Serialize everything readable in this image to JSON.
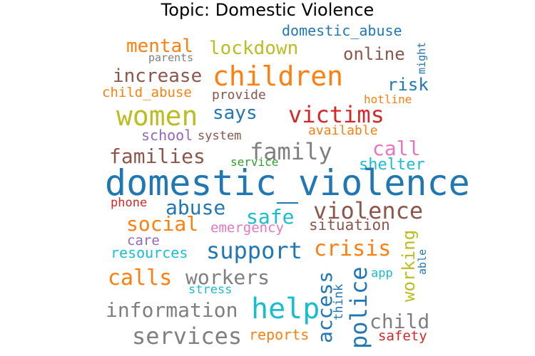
{
  "title": "Topic: Domestic Violence",
  "colors": {
    "blue": "#1f77b4",
    "orange": "#ff7f0e",
    "red": "#d62728",
    "purple": "#9467bd",
    "brown": "#8c564b",
    "pink": "#e377c2",
    "gray": "#7f7f7f",
    "olive": "#bcbd22",
    "cyan": "#17becf",
    "green": "#2ca02c"
  },
  "words": [
    {
      "text": "domestic_abuse",
      "color": "blue"
    },
    {
      "text": "might",
      "color": "blue"
    },
    {
      "text": "mental",
      "color": "orange"
    },
    {
      "text": "lockdown",
      "color": "olive"
    },
    {
      "text": "parents",
      "color": "gray"
    },
    {
      "text": "online",
      "color": "brown"
    },
    {
      "text": "children",
      "color": "orange"
    },
    {
      "text": "increase",
      "color": "brown"
    },
    {
      "text": "risk",
      "color": "blue"
    },
    {
      "text": "child_abuse",
      "color": "orange"
    },
    {
      "text": "provide",
      "color": "brown"
    },
    {
      "text": "hotline",
      "color": "orange"
    },
    {
      "text": "women",
      "color": "olive"
    },
    {
      "text": "says",
      "color": "blue"
    },
    {
      "text": "victims",
      "color": "red"
    },
    {
      "text": "available",
      "color": "orange"
    },
    {
      "text": "school",
      "color": "purple"
    },
    {
      "text": "system",
      "color": "brown"
    },
    {
      "text": "call",
      "color": "pink"
    },
    {
      "text": "families",
      "color": "brown"
    },
    {
      "text": "family",
      "color": "gray"
    },
    {
      "text": "service",
      "color": "green"
    },
    {
      "text": "shelter",
      "color": "cyan"
    },
    {
      "text": "domestic_violence",
      "color": "blue"
    },
    {
      "text": "phone",
      "color": "red"
    },
    {
      "text": "abuse",
      "color": "blue"
    },
    {
      "text": "violence",
      "color": "brown"
    },
    {
      "text": "safe",
      "color": "cyan"
    },
    {
      "text": "social",
      "color": "orange"
    },
    {
      "text": "emergency",
      "color": "pink"
    },
    {
      "text": "situation",
      "color": "brown"
    },
    {
      "text": "working",
      "color": "olive"
    },
    {
      "text": "care",
      "color": "purple"
    },
    {
      "text": "able",
      "color": "blue"
    },
    {
      "text": "resources",
      "color": "cyan"
    },
    {
      "text": "support",
      "color": "blue"
    },
    {
      "text": "crisis",
      "color": "orange"
    },
    {
      "text": "app",
      "color": "cyan"
    },
    {
      "text": "calls",
      "color": "orange"
    },
    {
      "text": "workers",
      "color": "gray"
    },
    {
      "text": "access",
      "color": "blue"
    },
    {
      "text": "police",
      "color": "blue"
    },
    {
      "text": "stress",
      "color": "cyan"
    },
    {
      "text": "think",
      "color": "blue"
    },
    {
      "text": "information",
      "color": "gray"
    },
    {
      "text": "help",
      "color": "cyan"
    },
    {
      "text": "child",
      "color": "gray"
    },
    {
      "text": "services",
      "color": "gray"
    },
    {
      "text": "reports",
      "color": "orange"
    },
    {
      "text": "safety",
      "color": "red"
    }
  ]
}
